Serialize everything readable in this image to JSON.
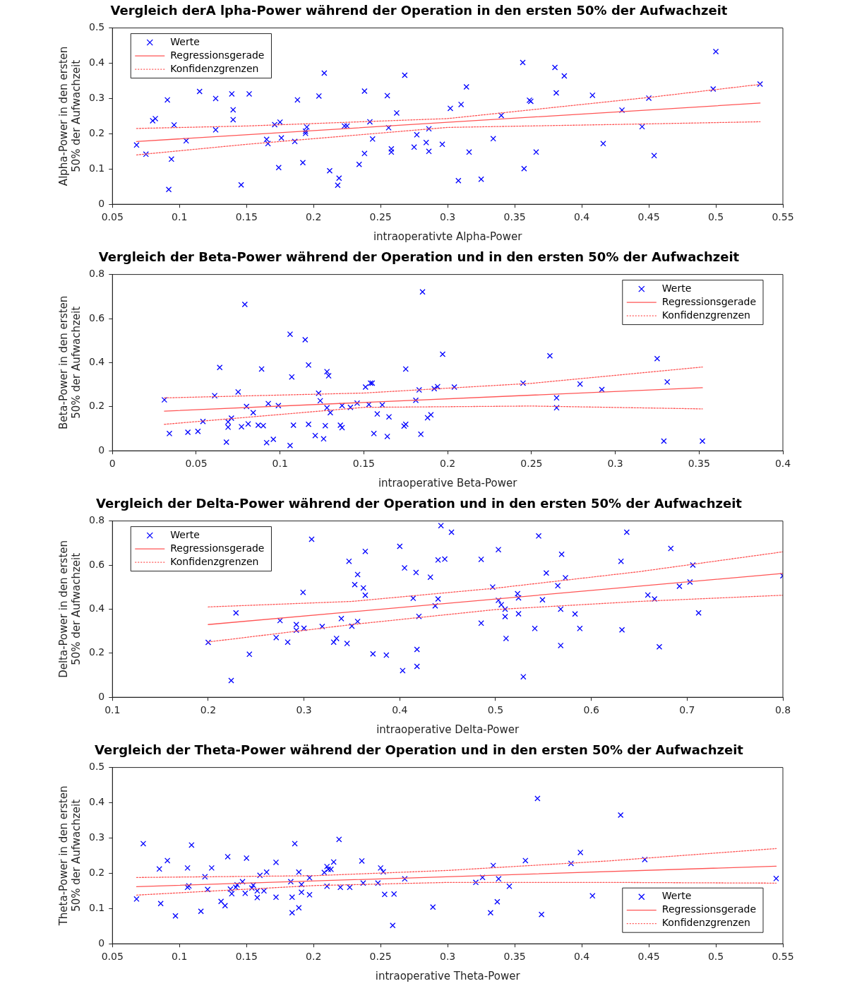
{
  "chart_data": [
    {
      "type": "scatter",
      "title": "Vergleich derA lpha-Power während der Operation in den ersten 50% der Aufwachzeit",
      "xlabel": "intraoperativte Alpha-Power",
      "ylabel": "Alpha-Power in den ersten 50% der Aufwachzeit",
      "xlim": [
        0.05,
        0.55
      ],
      "xticks": [
        0.05,
        0.1,
        0.15,
        0.2,
        0.25,
        0.3,
        0.35,
        0.4,
        0.45,
        0.5,
        0.55
      ],
      "ylim": [
        0,
        0.5
      ],
      "yticks": [
        0,
        0.1,
        0.2,
        0.3,
        0.4,
        0.5
      ],
      "legend": "top left",
      "series": [
        {
          "name": "Werte",
          "color": "#0000ff",
          "marker": "cross",
          "x": [
            0.068,
            0.075,
            0.08,
            0.082,
            0.091,
            0.092,
            0.094,
            0.096,
            0.105,
            0.115,
            0.127,
            0.127,
            0.139,
            0.14,
            0.14,
            0.146,
            0.152,
            0.165,
            0.166,
            0.171,
            0.174,
            0.175,
            0.176,
            0.186,
            0.188,
            0.192,
            0.195,
            0.194,
            0.194,
            0.204,
            0.208,
            0.212,
            0.219,
            0.218,
            0.223,
            0.225,
            0.234,
            0.238,
            0.238,
            0.242,
            0.244,
            0.255,
            0.256,
            0.258,
            0.258,
            0.262,
            0.268,
            0.275,
            0.277,
            0.284,
            0.286,
            0.286,
            0.296,
            0.302,
            0.308,
            0.31,
            0.314,
            0.316,
            0.325,
            0.334,
            0.34,
            0.356,
            0.357,
            0.361,
            0.362,
            0.366,
            0.38,
            0.381,
            0.387,
            0.408,
            0.416,
            0.43,
            0.445,
            0.45,
            0.454,
            0.498,
            0.5,
            0.533
          ],
          "values": [
            0.168,
            0.142,
            0.237,
            0.243,
            0.296,
            0.042,
            0.128,
            0.225,
            0.18,
            0.32,
            0.3,
            0.211,
            0.313,
            0.268,
            0.24,
            0.055,
            0.313,
            0.184,
            0.172,
            0.226,
            0.104,
            0.233,
            0.188,
            0.178,
            0.296,
            0.118,
            0.219,
            0.201,
            0.207,
            0.307,
            0.372,
            0.095,
            0.074,
            0.054,
            0.222,
            0.222,
            0.113,
            0.144,
            0.321,
            0.234,
            0.185,
            0.308,
            0.217,
            0.157,
            0.148,
            0.259,
            0.366,
            0.162,
            0.197,
            0.175,
            0.214,
            0.15,
            0.17,
            0.272,
            0.067,
            0.283,
            0.333,
            0.148,
            0.071,
            0.186,
            0.252,
            0.402,
            0.101,
            0.295,
            0.292,
            0.148,
            0.388,
            0.316,
            0.364,
            0.309,
            0.172,
            0.267,
            0.22,
            0.301,
            0.138,
            0.327,
            0.433,
            0.341
          ]
        },
        {
          "name": "Regressionsgerade",
          "type": "line",
          "color": "#ff5555",
          "marker": "none",
          "line_style": "solid",
          "x": [
            0.068,
            0.533
          ],
          "values": [
            0.178,
            0.287
          ]
        },
        {
          "name": "Konfidenzgrenzen",
          "type": "line",
          "color": "#ff5555",
          "marker": "none",
          "line_style": "dotted",
          "x": [
            0.068,
            0.15,
            0.3,
            0.45,
            0.533
          ],
          "values": [
            0.215,
            0.222,
            0.243,
            0.303,
            0.34
          ]
        },
        {
          "type": "line",
          "color": "#ff5555",
          "marker": "none",
          "line_style": "dotted",
          "x": [
            0.068,
            0.15,
            0.3,
            0.45,
            0.533
          ],
          "values": [
            0.14,
            0.17,
            0.218,
            0.228,
            0.234
          ]
        }
      ]
    },
    {
      "type": "scatter",
      "title": "Vergleich der Beta-Power während der Operation und in den ersten 50% der Aufwachzeit",
      "xlabel": "intraoperative Beta-Power",
      "ylabel": "Beta-Power in den ersten 50% der Aufwachzeit",
      "xlim": [
        0,
        0.4
      ],
      "xticks": [
        0,
        0.05,
        0.1,
        0.15,
        0.2,
        0.25,
        0.3,
        0.35,
        0.4
      ],
      "ylim": [
        0,
        0.8
      ],
      "yticks": [
        0,
        0.2,
        0.4,
        0.6,
        0.8
      ],
      "legend": "top right",
      "series": [
        {
          "name": "Werte",
          "color": "#0000ff",
          "marker": "cross",
          "x": [
            0.031,
            0.034,
            0.045,
            0.051,
            0.054,
            0.061,
            0.064,
            0.068,
            0.069,
            0.069,
            0.071,
            0.075,
            0.077,
            0.079,
            0.08,
            0.081,
            0.084,
            0.087,
            0.089,
            0.09,
            0.092,
            0.093,
            0.096,
            0.099,
            0.106,
            0.106,
            0.107,
            0.108,
            0.115,
            0.117,
            0.117,
            0.121,
            0.123,
            0.124,
            0.126,
            0.127,
            0.128,
            0.129,
            0.128,
            0.13,
            0.136,
            0.137,
            0.137,
            0.142,
            0.146,
            0.151,
            0.153,
            0.154,
            0.155,
            0.156,
            0.158,
            0.161,
            0.164,
            0.165,
            0.174,
            0.175,
            0.175,
            0.181,
            0.183,
            0.184,
            0.185,
            0.188,
            0.19,
            0.192,
            0.194,
            0.197,
            0.204,
            0.245,
            0.261,
            0.265,
            0.265,
            0.279,
            0.292,
            0.325,
            0.329,
            0.331,
            0.352
          ],
          "values": [
            0.231,
            0.078,
            0.084,
            0.088,
            0.133,
            0.25,
            0.378,
            0.039,
            0.131,
            0.107,
            0.148,
            0.267,
            0.109,
            0.664,
            0.201,
            0.122,
            0.173,
            0.116,
            0.371,
            0.114,
            0.037,
            0.214,
            0.052,
            0.205,
            0.024,
            0.529,
            0.335,
            0.116,
            0.504,
            0.389,
            0.12,
            0.069,
            0.261,
            0.227,
            0.054,
            0.114,
            0.359,
            0.34,
            0.195,
            0.173,
            0.116,
            0.105,
            0.205,
            0.197,
            0.216,
            0.289,
            0.21,
            0.307,
            0.307,
            0.078,
            0.167,
            0.208,
            0.065,
            0.154,
            0.112,
            0.371,
            0.12,
            0.229,
            0.276,
            0.075,
            0.721,
            0.15,
            0.163,
            0.282,
            0.291,
            0.438,
            0.289,
            0.307,
            0.431,
            0.24,
            0.195,
            0.303,
            0.278,
            0.418,
            0.044,
            0.312,
            0.044
          ]
        },
        {
          "name": "Regressionsgerade",
          "type": "line",
          "color": "#ff5555",
          "marker": "none",
          "line_style": "solid",
          "x": [
            0.031,
            0.352
          ],
          "values": [
            0.18,
            0.286
          ]
        },
        {
          "name": "Konfidenzgrenzen",
          "type": "line",
          "color": "#ff5555",
          "marker": "none",
          "line_style": "dotted",
          "x": [
            0.031,
            0.15,
            0.25,
            0.352
          ],
          "values": [
            0.24,
            0.262,
            0.306,
            0.38
          ]
        },
        {
          "type": "line",
          "color": "#ff5555",
          "marker": "none",
          "line_style": "dotted",
          "x": [
            0.031,
            0.15,
            0.25,
            0.352
          ],
          "values": [
            0.12,
            0.197,
            0.203,
            0.19
          ]
        }
      ]
    },
    {
      "type": "scatter",
      "title": "Vergleich der Delta-Power während der Operation und in den ersten 50% der Aufwachzeit",
      "xlabel": "intraoperative Delta-Power",
      "ylabel": "Delta-Power in den ersten 50% der Aufwachzeit",
      "xlim": [
        0.1,
        0.8
      ],
      "xticks": [
        0.1,
        0.2,
        0.3,
        0.4,
        0.5,
        0.6,
        0.7,
        0.8
      ],
      "ylim": [
        0,
        0.8
      ],
      "yticks": [
        0,
        0.2,
        0.4,
        0.6,
        0.8
      ],
      "legend": "top left",
      "series": [
        {
          "name": "Werte",
          "color": "#0000ff",
          "marker": "cross",
          "x": [
            0.2,
            0.224,
            0.229,
            0.243,
            0.271,
            0.275,
            0.283,
            0.292,
            0.292,
            0.299,
            0.3,
            0.308,
            0.319,
            0.331,
            0.334,
            0.339,
            0.345,
            0.347,
            0.35,
            0.356,
            0.356,
            0.353,
            0.362,
            0.364,
            0.364,
            0.372,
            0.386,
            0.4,
            0.403,
            0.405,
            0.414,
            0.417,
            0.418,
            0.418,
            0.42,
            0.432,
            0.437,
            0.44,
            0.44,
            0.443,
            0.447,
            0.454,
            0.485,
            0.485,
            0.497,
            0.503,
            0.503,
            0.506,
            0.51,
            0.51,
            0.511,
            0.523,
            0.524,
            0.524,
            0.529,
            0.541,
            0.545,
            0.549,
            0.553,
            0.565,
            0.568,
            0.568,
            0.569,
            0.573,
            0.583,
            0.588,
            0.631,
            0.632,
            0.637,
            0.659,
            0.666,
            0.671,
            0.683,
            0.692,
            0.703,
            0.706,
            0.712,
            0.8
          ],
          "values": [
            0.249,
            0.076,
            0.383,
            0.195,
            0.271,
            0.348,
            0.25,
            0.33,
            0.304,
            0.476,
            0.313,
            0.717,
            0.321,
            0.25,
            0.267,
            0.357,
            0.244,
            0.617,
            0.323,
            0.557,
            0.344,
            0.511,
            0.496,
            0.463,
            0.662,
            0.197,
            0.191,
            0.685,
            0.121,
            0.587,
            0.449,
            0.566,
            0.217,
            0.14,
            0.367,
            0.545,
            0.415,
            0.446,
            0.623,
            0.779,
            0.627,
            0.749,
            0.626,
            0.336,
            0.5,
            0.44,
            0.67,
            0.42,
            0.4,
            0.366,
            0.267,
            0.47,
            0.451,
            0.379,
            0.093,
            0.312,
            0.732,
            0.442,
            0.564,
            0.506,
            0.235,
            0.4,
            0.649,
            0.542,
            0.378,
            0.312,
            0.617,
            0.306,
            0.749,
            0.464,
            0.446,
            0.229,
            0.675,
            0.504,
            0.523,
            0.6,
            0.383,
            0.551
          ]
        },
        {
          "name": "Regressionsgerade",
          "type": "line",
          "color": "#ff5555",
          "marker": "none",
          "line_style": "solid",
          "x": [
            0.2,
            0.8
          ],
          "values": [
            0.33,
            0.562
          ]
        },
        {
          "name": "Konfidenzgrenzen",
          "type": "line",
          "color": "#ff5555",
          "marker": "none",
          "line_style": "dotted",
          "x": [
            0.2,
            0.35,
            0.5,
            0.65,
            0.8
          ],
          "values": [
            0.41,
            0.435,
            0.495,
            0.57,
            0.66
          ]
        },
        {
          "type": "line",
          "color": "#ff5555",
          "marker": "none",
          "line_style": "dotted",
          "x": [
            0.2,
            0.35,
            0.5,
            0.65,
            0.8
          ],
          "values": [
            0.251,
            0.33,
            0.398,
            0.435,
            0.463
          ]
        }
      ]
    },
    {
      "type": "scatter",
      "title": "Vergleich der Theta-Power während der Operation und in den ersten 50% der Aufwachzeit",
      "xlabel": "intraoperative Theta-Power",
      "ylabel": "Theta-Power in den ersten 50% der Aufwachzeit",
      "xlim": [
        0.05,
        0.55
      ],
      "xticks": [
        0.05,
        0.1,
        0.15,
        0.2,
        0.25,
        0.3,
        0.35,
        0.4,
        0.45,
        0.5,
        0.55
      ],
      "ylim": [
        0,
        0.5
      ],
      "yticks": [
        0,
        0.1,
        0.2,
        0.3,
        0.4,
        0.5
      ],
      "legend": "bottom right",
      "series": [
        {
          "name": "Werte",
          "color": "#0000ff",
          "marker": "cross",
          "x": [
            0.068,
            0.073,
            0.085,
            0.086,
            0.091,
            0.097,
            0.106,
            0.106,
            0.107,
            0.109,
            0.116,
            0.119,
            0.121,
            0.124,
            0.131,
            0.134,
            0.136,
            0.138,
            0.139,
            0.142,
            0.143,
            0.147,
            0.15,
            0.149,
            0.154,
            0.155,
            0.158,
            0.158,
            0.16,
            0.165,
            0.163,
            0.172,
            0.172,
            0.183,
            0.184,
            0.184,
            0.186,
            0.189,
            0.189,
            0.191,
            0.191,
            0.197,
            0.197,
            0.208,
            0.21,
            0.21,
            0.211,
            0.213,
            0.215,
            0.219,
            0.22,
            0.227,
            0.236,
            0.237,
            0.248,
            0.25,
            0.252,
            0.253,
            0.26,
            0.259,
            0.268,
            0.289,
            0.321,
            0.326,
            0.332,
            0.334,
            0.337,
            0.338,
            0.346,
            0.358,
            0.367,
            0.37,
            0.392,
            0.399,
            0.408,
            0.429,
            0.447,
            0.545
          ],
          "values": [
            0.127,
            0.284,
            0.212,
            0.114,
            0.236,
            0.079,
            0.215,
            0.16,
            0.164,
            0.28,
            0.092,
            0.19,
            0.154,
            0.215,
            0.12,
            0.108,
            0.247,
            0.155,
            0.142,
            0.16,
            0.167,
            0.176,
            0.243,
            0.143,
            0.158,
            0.166,
            0.131,
            0.15,
            0.194,
            0.203,
            0.15,
            0.132,
            0.231,
            0.176,
            0.132,
            0.088,
            0.284,
            0.102,
            0.203,
            0.168,
            0.146,
            0.139,
            0.187,
            0.202,
            0.219,
            0.163,
            0.211,
            0.211,
            0.232,
            0.296,
            0.16,
            0.16,
            0.235,
            0.172,
            0.172,
            0.215,
            0.204,
            0.14,
            0.141,
            0.052,
            0.184,
            0.104,
            0.174,
            0.188,
            0.088,
            0.222,
            0.119,
            0.184,
            0.163,
            0.236,
            0.412,
            0.083,
            0.228,
            0.259,
            0.136,
            0.365,
            0.239,
            0.185
          ]
        },
        {
          "name": "Regressionsgerade",
          "type": "line",
          "color": "#ff5555",
          "marker": "none",
          "line_style": "solid",
          "x": [
            0.068,
            0.545
          ],
          "values": [
            0.162,
            0.22
          ]
        },
        {
          "name": "Konfidenzgrenzen",
          "type": "line",
          "color": "#ff5555",
          "marker": "none",
          "line_style": "dotted",
          "x": [
            0.068,
            0.2,
            0.3,
            0.42,
            0.545
          ],
          "values": [
            0.188,
            0.193,
            0.208,
            0.235,
            0.27
          ]
        },
        {
          "type": "line",
          "color": "#ff5555",
          "marker": "none",
          "line_style": "dotted",
          "x": [
            0.068,
            0.2,
            0.3,
            0.42,
            0.545
          ],
          "values": [
            0.138,
            0.165,
            0.174,
            0.174,
            0.172
          ]
        }
      ]
    }
  ]
}
